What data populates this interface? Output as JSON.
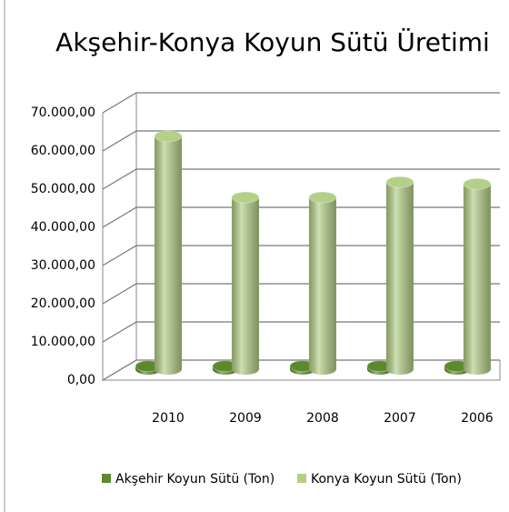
{
  "chart_data": {
    "type": "bar3d",
    "title": "Akşehir-Konya Koyun Sütü Üretimi",
    "categories": [
      "2010",
      "2009",
      "2008",
      "2007",
      "2006"
    ],
    "series": [
      {
        "name": "Akşehir Koyun Sütü (Ton)",
        "color": "#5b8a2c",
        "values": [
          800,
          800,
          800,
          800,
          800
        ]
      },
      {
        "name": "Konya Koyun Sütü (Ton)",
        "color": "#b4cf88",
        "values": [
          61000,
          45000,
          45000,
          49000,
          48500
        ]
      }
    ],
    "ylim": [
      0,
      70000
    ],
    "yticks": [
      {
        "value": 0,
        "label": "0,00"
      },
      {
        "value": 10000,
        "label": "10.000,00"
      },
      {
        "value": 20000,
        "label": "20.000,00"
      },
      {
        "value": 30000,
        "label": "30.000,00"
      },
      {
        "value": 40000,
        "label": "40.000,00"
      },
      {
        "value": 50000,
        "label": "50.000,00"
      },
      {
        "value": 60000,
        "label": "60.000,00"
      },
      {
        "value": 70000,
        "label": "70.000,00"
      }
    ],
    "grid": true,
    "legend": "bottom"
  }
}
